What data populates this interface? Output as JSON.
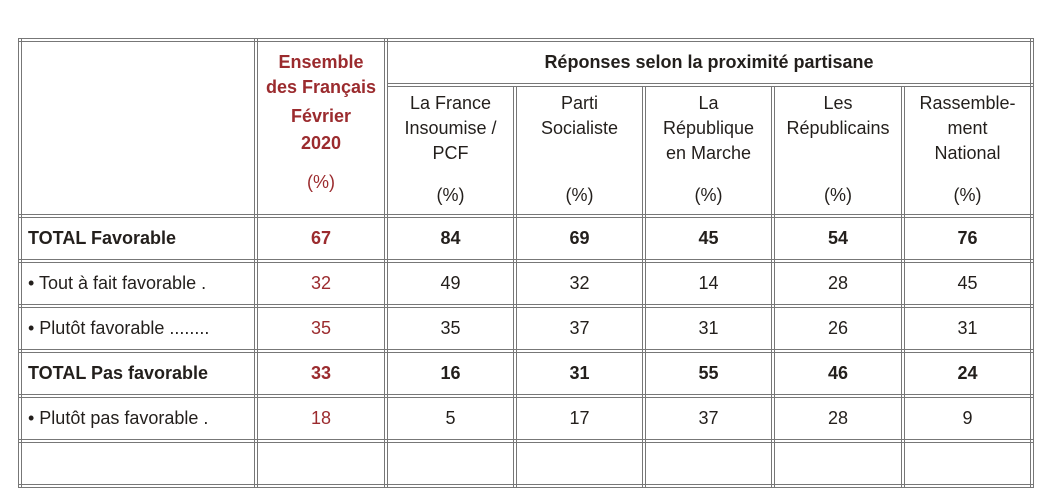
{
  "header": {
    "overall": {
      "lines": [
        "Ensemble",
        "des Français",
        "Février",
        "2020"
      ],
      "unit": "(%)"
    },
    "group_title": "Réponses selon la proximité partisane",
    "parties": [
      {
        "lines": [
          "La France",
          "Insoumise /",
          "PCF"
        ],
        "unit": "(%)"
      },
      {
        "lines": [
          "Parti",
          "Socialiste",
          ""
        ],
        "unit": "(%)"
      },
      {
        "lines": [
          "La",
          "République",
          "en Marche"
        ],
        "unit": "(%)"
      },
      {
        "lines": [
          "Les",
          "Républicains",
          ""
        ],
        "unit": "(%)"
      },
      {
        "lines": [
          "Rassemble-",
          "ment",
          "National"
        ],
        "unit": "(%)"
      }
    ]
  },
  "rows": [
    {
      "label": "TOTAL Favorable",
      "bold": true,
      "overall": "67",
      "values": [
        "84",
        "69",
        "45",
        "54",
        "76"
      ]
    },
    {
      "label": "• Tout à fait favorable  .",
      "bold": false,
      "overall": "32",
      "values": [
        "49",
        "32",
        "14",
        "28",
        "45"
      ]
    },
    {
      "label": "• Plutôt favorable ........",
      "bold": false,
      "overall": "35",
      "values": [
        "35",
        "37",
        "31",
        "26",
        "31"
      ]
    },
    {
      "label": "TOTAL Pas favorable",
      "bold": true,
      "overall": "33",
      "values": [
        "16",
        "31",
        "55",
        "46",
        "24"
      ]
    },
    {
      "label": "• Plutôt pas favorable  .",
      "bold": false,
      "overall": "18",
      "values": [
        "5",
        "17",
        "37",
        "28",
        "9"
      ]
    }
  ],
  "colors": {
    "accent": "#9b2b2e",
    "border": "#777777",
    "text": "#231f1c"
  }
}
